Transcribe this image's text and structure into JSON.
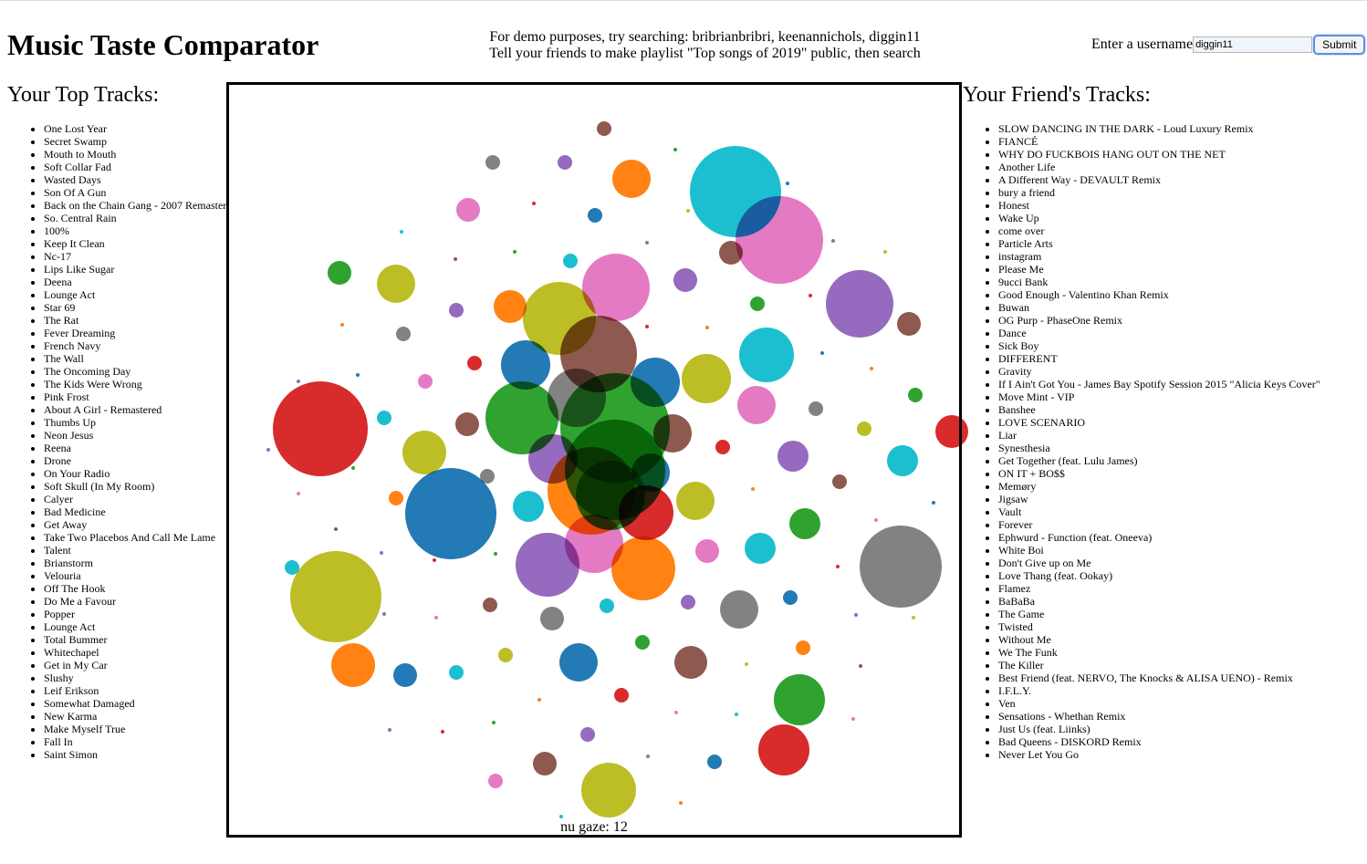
{
  "header": {
    "title": "Music Taste Comparator",
    "hint_line1": "For demo purposes, try searching: bribrianbribri, keenannichols, diggin11",
    "hint_line2": "Tell your friends to make playlist \"Top songs of 2019\" public, then search"
  },
  "search": {
    "label": "Enter a username",
    "value": "diggin11",
    "submit_label": "Submit"
  },
  "left_panel": {
    "heading": "Your Top Tracks:",
    "tracks": [
      "One Lost Year",
      "Secret Swamp",
      "Mouth to Mouth",
      "Soft Collar Fad",
      "Wasted Days",
      "Son Of A Gun",
      "Back on the Chain Gang - 2007 Remaster",
      "So. Central Rain",
      "100%",
      "Keep It Clean",
      "Nc-17",
      "Lips Like Sugar",
      "Deena",
      "Lounge Act",
      "Star 69",
      "The Rat",
      "Fever Dreaming",
      "French Navy",
      "The Wall",
      "The Oncoming Day",
      "The Kids Were Wrong",
      "Pink Frost",
      "About A Girl - Remastered",
      "Thumbs Up",
      "Neon Jesus",
      "Reena",
      "Drone",
      "On Your Radio",
      "Soft Skull (In My Room)",
      "Calyer",
      "Bad Medicine",
      "Get Away",
      "Take Two Placebos And Call Me Lame",
      "Talent",
      "Brianstorm",
      "Velouria",
      "Off The Hook",
      "Do Me a Favour",
      "Popper",
      "Lounge Act",
      "Total Bummer",
      "Whitechapel",
      "Get in My Car",
      "Slushy",
      "Leif Erikson",
      "Somewhat Damaged",
      "New Karma",
      "Make Myself True",
      "Fall In",
      "Saint Simon"
    ]
  },
  "right_panel": {
    "heading": "Your Friend's Tracks:",
    "tracks": [
      "SLOW DANCING IN THE DARK - Loud Luxury Remix",
      "FIANCÉ",
      "WHY DO FUCKBOIS HANG OUT ON THE NET",
      "Another Life",
      "A Different Way - DEVAULT Remix",
      "bury a friend",
      "Honest",
      "Wake Up",
      "come over",
      "Particle Arts",
      "instagram",
      "Please Me",
      "9ucci Bank",
      "Good Enough - Valentino Khan Remix",
      "Buwan",
      "OG Purp - PhaseOne Remix",
      "Dance",
      "Sick Boy",
      "DIFFERENT",
      "Gravity",
      "If I Ain't Got You - James Bay Spotify Session 2015 \"Alicia Keys Cover\"",
      "Move Mint - VIP",
      "Banshee",
      "LOVE SCENARIO",
      "Liar",
      "Synesthesia",
      "Get Together (feat. Lulu James)",
      "ON IT + BO$$",
      "Memøry",
      "Jigsaw",
      "Vault",
      "Forever",
      "Ephwurd - Function (feat. Oneeva)",
      "White Boi",
      "Don't Give up on Me",
      "Love Thang (feat. Ookay)",
      "Flamez",
      "BaBaBa",
      "The Game",
      "Twisted",
      "Without Me",
      "We The Funk",
      "The Killer",
      "Best Friend (feat. NERVO, The Knocks & ALISA UENO) - Remix",
      "I.F.L.Y.",
      "Ven",
      "Sensations - Whethan Remix",
      "Just Us (feat. Liinks)",
      "Bad Queens - DISKORD Remix",
      "Never Let You Go"
    ]
  },
  "visualization": {
    "caption": "nu gaze: 12",
    "palette": {
      "blue": "#1f77b4",
      "orange": "#ff7f0e",
      "green": "#2ca02c",
      "red": "#d62728",
      "purple": "#9467bd",
      "brown": "#8c564b",
      "pink": "#e377c2",
      "gray": "#7f7f7f",
      "olive": "#bcbd22",
      "cyan": "#17becf"
    }
  }
}
